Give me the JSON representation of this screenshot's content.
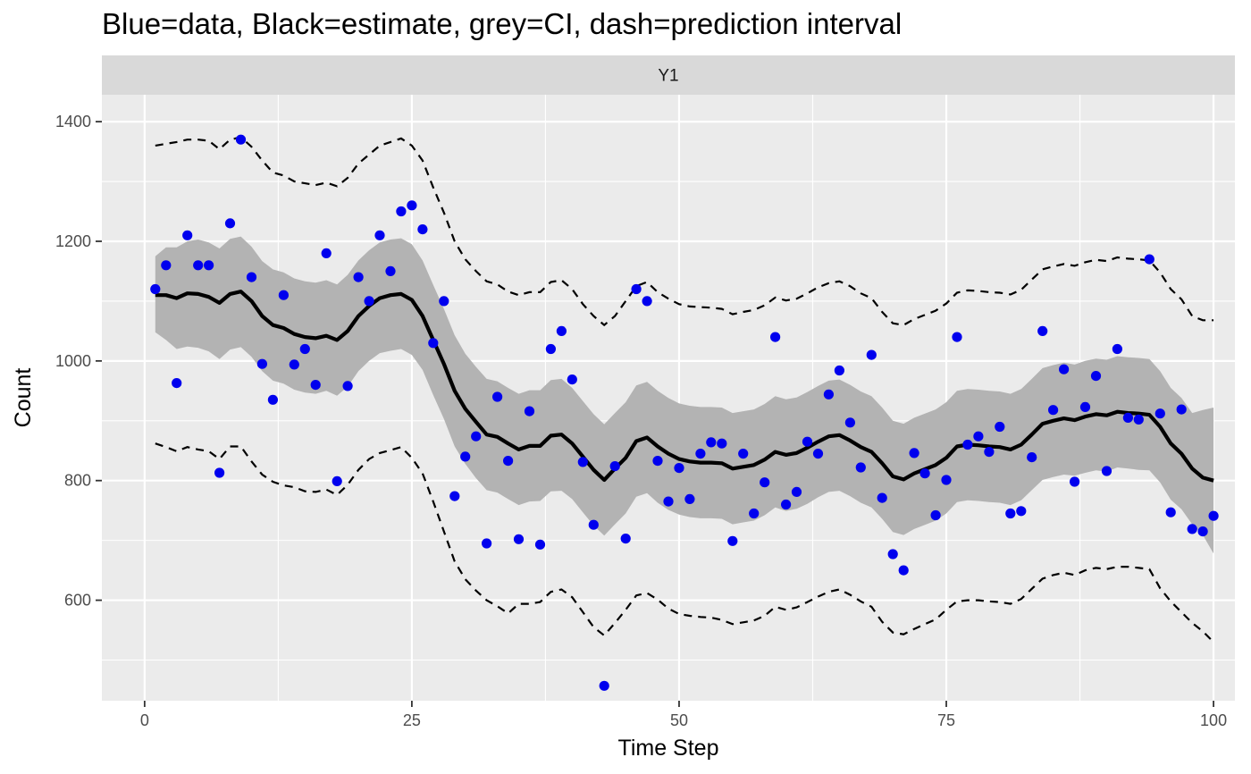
{
  "title": "Blue=data, Black=estimate, grey=CI, dash=prediction interval",
  "chart_data": {
    "type": "line",
    "facet_label": "Y1",
    "xlabel": "Time Step",
    "ylabel": "Count",
    "xlim": [
      -4,
      102
    ],
    "ylim": [
      432,
      1445
    ],
    "x_ticks": [
      0,
      25,
      50,
      75,
      100
    ],
    "y_ticks": [
      600,
      800,
      1000,
      1200,
      1400
    ],
    "grid": true,
    "colors": {
      "data": "#0000ee",
      "estimate": "#000000",
      "ci": "#b3b3b3",
      "panel": "#ebebeb",
      "strip": "#d9d9d9",
      "grid": "#ffffff"
    },
    "x": [
      1,
      2,
      3,
      4,
      5,
      6,
      7,
      8,
      9,
      10,
      11,
      12,
      13,
      14,
      15,
      16,
      17,
      18,
      19,
      20,
      21,
      22,
      23,
      24,
      25,
      26,
      27,
      28,
      29,
      30,
      31,
      32,
      33,
      34,
      35,
      36,
      37,
      38,
      39,
      40,
      41,
      42,
      43,
      44,
      45,
      46,
      47,
      48,
      49,
      50,
      51,
      52,
      53,
      54,
      55,
      56,
      57,
      58,
      59,
      60,
      61,
      62,
      63,
      64,
      65,
      66,
      67,
      68,
      69,
      70,
      71,
      72,
      73,
      74,
      75,
      76,
      77,
      78,
      79,
      80,
      81,
      82,
      83,
      84,
      85,
      86,
      87,
      88,
      89,
      90,
      91,
      92,
      93,
      94,
      95,
      96,
      97,
      98,
      99,
      100
    ],
    "observed": [
      1120,
      1160,
      963,
      1210,
      1160,
      1160,
      813,
      1230,
      1370,
      1140,
      995,
      935,
      1110,
      994,
      1020,
      960,
      1180,
      799,
      958,
      1140,
      1100,
      1210,
      1150,
      1250,
      1260,
      1220,
      1030,
      1100,
      774,
      840,
      874,
      695,
      940,
      833,
      702,
      916,
      693,
      1020,
      1050,
      969,
      831,
      726,
      457,
      824,
      703,
      1120,
      1100,
      833,
      765,
      821,
      769,
      845,
      864,
      862,
      699,
      845,
      745,
      797,
      1040,
      760,
      781,
      865,
      845,
      944,
      984,
      897,
      822,
      1010,
      771,
      677,
      650,
      846,
      812,
      742,
      801,
      1040,
      860,
      874,
      848,
      890,
      745,
      749,
      839,
      1050,
      918,
      986,
      798,
      923,
      975,
      816,
      1020,
      905,
      902,
      1170,
      912,
      747,
      919,
      719,
      715,
      741
    ],
    "estimate": [
      1110,
      1110,
      1105,
      1113,
      1112,
      1107,
      1097,
      1112,
      1116,
      1100,
      1075,
      1060,
      1055,
      1045,
      1040,
      1038,
      1042,
      1035,
      1050,
      1075,
      1092,
      1105,
      1110,
      1112,
      1102,
      1075,
      1035,
      995,
      950,
      920,
      898,
      877,
      873,
      862,
      852,
      858,
      858,
      875,
      877,
      862,
      840,
      818,
      801,
      820,
      838,
      866,
      872,
      857,
      845,
      836,
      832,
      830,
      830,
      829,
      820,
      823,
      826,
      835,
      848,
      843,
      846,
      855,
      865,
      874,
      876,
      867,
      856,
      848,
      829,
      807,
      802,
      812,
      819,
      826,
      838,
      857,
      860,
      859,
      857,
      856,
      852,
      860,
      877,
      895,
      900,
      904,
      901,
      907,
      911,
      909,
      915,
      913,
      912,
      910,
      890,
      862,
      845,
      820,
      805,
      800
    ],
    "ci_lower": [
      1048,
      1035,
      1020,
      1024,
      1022,
      1016,
      1003,
      1019,
      1023,
      1007,
      983,
      967,
      962,
      952,
      947,
      945,
      950,
      942,
      957,
      983,
      1000,
      1013,
      1017,
      1020,
      1010,
      985,
      943,
      903,
      857,
      828,
      804,
      784,
      780,
      769,
      759,
      765,
      766,
      782,
      783,
      769,
      747,
      725,
      708,
      727,
      745,
      773,
      779,
      763,
      751,
      743,
      739,
      737,
      737,
      736,
      727,
      730,
      733,
      742,
      755,
      749,
      753,
      761,
      772,
      781,
      783,
      774,
      763,
      755,
      736,
      714,
      709,
      719,
      726,
      733,
      745,
      764,
      767,
      766,
      764,
      763,
      759,
      767,
      784,
      801,
      806,
      810,
      808,
      813,
      817,
      815,
      822,
      820,
      818,
      817,
      797,
      768,
      752,
      727,
      709,
      678
    ],
    "ci_upper": [
      1175,
      1190,
      1190,
      1200,
      1203,
      1198,
      1188,
      1204,
      1208,
      1191,
      1167,
      1153,
      1148,
      1138,
      1133,
      1131,
      1135,
      1128,
      1144,
      1168,
      1185,
      1198,
      1203,
      1205,
      1195,
      1168,
      1127,
      1087,
      1043,
      1012,
      990,
      970,
      966,
      955,
      945,
      951,
      951,
      968,
      970,
      955,
      933,
      911,
      894,
      913,
      931,
      959,
      965,
      950,
      938,
      929,
      925,
      923,
      923,
      922,
      913,
      916,
      919,
      928,
      941,
      936,
      939,
      948,
      958,
      967,
      969,
      960,
      949,
      941,
      922,
      900,
      895,
      905,
      912,
      919,
      931,
      950,
      953,
      952,
      950,
      949,
      945,
      953,
      970,
      988,
      993,
      997,
      994,
      1000,
      1004,
      1002,
      1008,
      1006,
      1005,
      1003,
      983,
      955,
      938,
      913,
      918,
      922
    ],
    "pi_lower": [
      862,
      856,
      849,
      856,
      852,
      849,
      836,
      857,
      857,
      832,
      810,
      798,
      792,
      789,
      782,
      781,
      785,
      776,
      793,
      818,
      836,
      846,
      851,
      856,
      838,
      812,
      765,
      715,
      665,
      635,
      616,
      600,
      590,
      578,
      594,
      594,
      597,
      614,
      618,
      605,
      580,
      555,
      541,
      562,
      584,
      608,
      612,
      601,
      586,
      577,
      574,
      572,
      571,
      567,
      560,
      563,
      566,
      574,
      589,
      584,
      588,
      597,
      606,
      614,
      618,
      609,
      598,
      589,
      564,
      546,
      543,
      552,
      560,
      568,
      584,
      598,
      600,
      600,
      598,
      597,
      594,
      602,
      619,
      636,
      642,
      646,
      642,
      650,
      654,
      652,
      656,
      656,
      654,
      652,
      620,
      598,
      580,
      562,
      548,
      530
    ],
    "pi_upper": [
      1360,
      1363,
      1366,
      1370,
      1370,
      1368,
      1354,
      1370,
      1374,
      1358,
      1335,
      1315,
      1310,
      1300,
      1297,
      1294,
      1298,
      1292,
      1306,
      1330,
      1345,
      1360,
      1366,
      1372,
      1360,
      1335,
      1290,
      1248,
      1200,
      1170,
      1150,
      1133,
      1128,
      1116,
      1110,
      1115,
      1115,
      1132,
      1135,
      1120,
      1095,
      1075,
      1060,
      1075,
      1100,
      1125,
      1132,
      1115,
      1104,
      1095,
      1091,
      1090,
      1089,
      1087,
      1078,
      1082,
      1085,
      1093,
      1106,
      1101,
      1104,
      1113,
      1123,
      1130,
      1133,
      1125,
      1113,
      1105,
      1082,
      1063,
      1060,
      1070,
      1077,
      1084,
      1096,
      1114,
      1118,
      1117,
      1115,
      1114,
      1111,
      1119,
      1136,
      1153,
      1158,
      1162,
      1159,
      1165,
      1169,
      1167,
      1173,
      1171,
      1170,
      1168,
      1148,
      1120,
      1103,
      1075,
      1068,
      1068
    ]
  }
}
